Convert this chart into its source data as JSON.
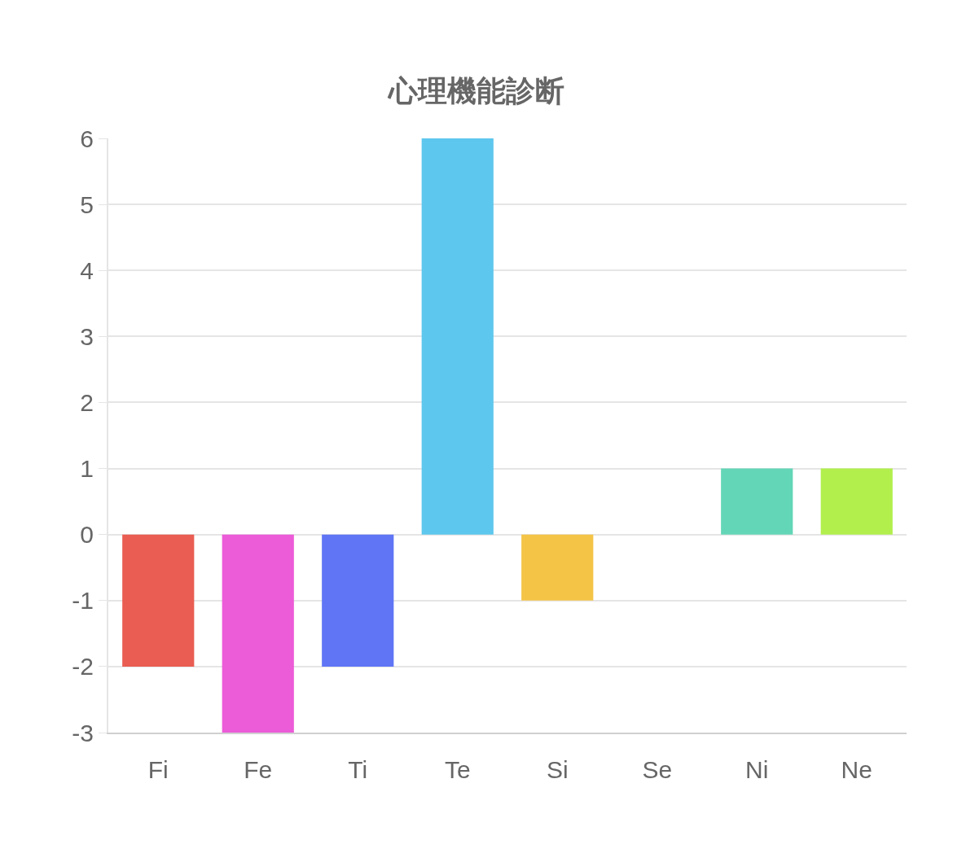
{
  "chart_data": {
    "type": "bar",
    "title": "心理機能診断",
    "categories": [
      "Fi",
      "Fe",
      "Ti",
      "Te",
      "Si",
      "Se",
      "Ni",
      "Ne"
    ],
    "values": [
      -2,
      -3,
      -2,
      6,
      -1,
      0,
      1,
      1
    ],
    "colors": [
      "#e95d52",
      "#ec5bd8",
      "#5f75f5",
      "#5ec7ee",
      "#f4c447",
      "#a0a0a0",
      "#63d6b7",
      "#b2ef4d"
    ],
    "ylim": [
      -3,
      6
    ],
    "yticks": [
      -3,
      -2,
      -1,
      0,
      1,
      2,
      3,
      4,
      5,
      6
    ],
    "grid": "y"
  }
}
